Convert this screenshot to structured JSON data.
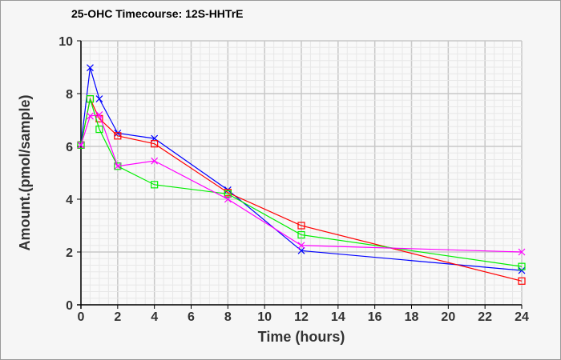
{
  "chart_data": {
    "type": "line",
    "title": "25-OHC Timecourse: 12S-HHTrE",
    "xlabel": "Time (hours)",
    "ylabel": "Amount.(pmol/sample)",
    "xlim": [
      0,
      24
    ],
    "ylim": [
      0,
      10
    ],
    "xticks": [
      0,
      2,
      4,
      6,
      8,
      10,
      12,
      14,
      16,
      18,
      20,
      22,
      24
    ],
    "yticks": [
      0,
      2,
      4,
      6,
      8,
      10
    ],
    "grid": true,
    "x": [
      0,
      0.5,
      1,
      2,
      4,
      8,
      12,
      24
    ],
    "series": [
      {
        "name": "blue",
        "color": "#0000ff",
        "marker": "x",
        "values": [
          6.05,
          8.98,
          7.8,
          6.5,
          6.3,
          4.35,
          2.05,
          1.3
        ]
      },
      {
        "name": "red",
        "color": "#ff0000",
        "marker": "square",
        "values": [
          6.05,
          7.8,
          7.05,
          6.4,
          6.1,
          4.25,
          3.0,
          0.9
        ]
      },
      {
        "name": "green",
        "color": "#00ee00",
        "marker": "square",
        "values": [
          6.05,
          7.8,
          6.65,
          5.25,
          4.55,
          4.2,
          2.65,
          1.45
        ]
      },
      {
        "name": "magenta",
        "color": "#ff00ff",
        "marker": "x",
        "values": [
          6.05,
          7.15,
          7.2,
          5.25,
          5.45,
          4.0,
          2.25,
          2.0
        ]
      }
    ]
  }
}
